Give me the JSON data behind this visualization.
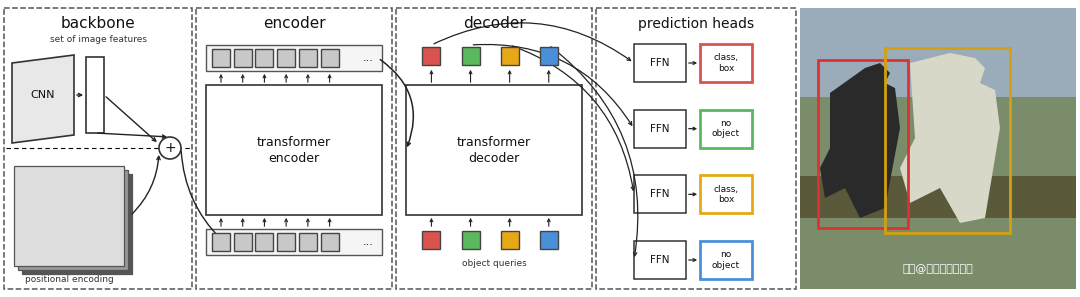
{
  "bg_color": "#ffffff",
  "query_colors": [
    "#d9534f",
    "#5cb85c",
    "#e6a817",
    "#4a90d9"
  ],
  "ffn_output_labels": [
    "class,\nbox",
    "no\nobject",
    "class,\nbox",
    "no\nobject"
  ],
  "watermark": "知乎@电光幻影炼金术",
  "backbone_label": "backbone",
  "encoder_label": "encoder",
  "decoder_label": "decoder",
  "prediction_label": "prediction heads",
  "cnn_label": "CNN",
  "set_features_label": "set of image features",
  "pos_enc_label": "positional encoding",
  "trans_enc_label1": "transformer",
  "trans_enc_label2": "encoder",
  "trans_dec_label1": "transformer",
  "trans_dec_label2": "decoder",
  "obj_queries_label": "object queries",
  "ffn_label": "FFN"
}
